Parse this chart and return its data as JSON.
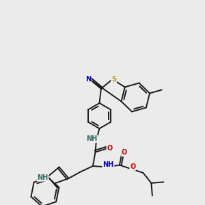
{
  "bg_color": "#ebebeb",
  "bond_color": "#1a1a1a",
  "bond_lw": 1.4,
  "N_color": "#0000cc",
  "S_color": "#b8960c",
  "O_color": "#cc0000",
  "NH_color": "#336666",
  "figsize": [
    3.0,
    3.0
  ],
  "dpi": 100,
  "xlim": [
    0,
    10
  ],
  "ylim": [
    0,
    10
  ],
  "inner_dbl_off": 0.1,
  "inner_dbl_shorten": 0.13,
  "outer_dbl_off": 0.09,
  "font_size": 7.0
}
